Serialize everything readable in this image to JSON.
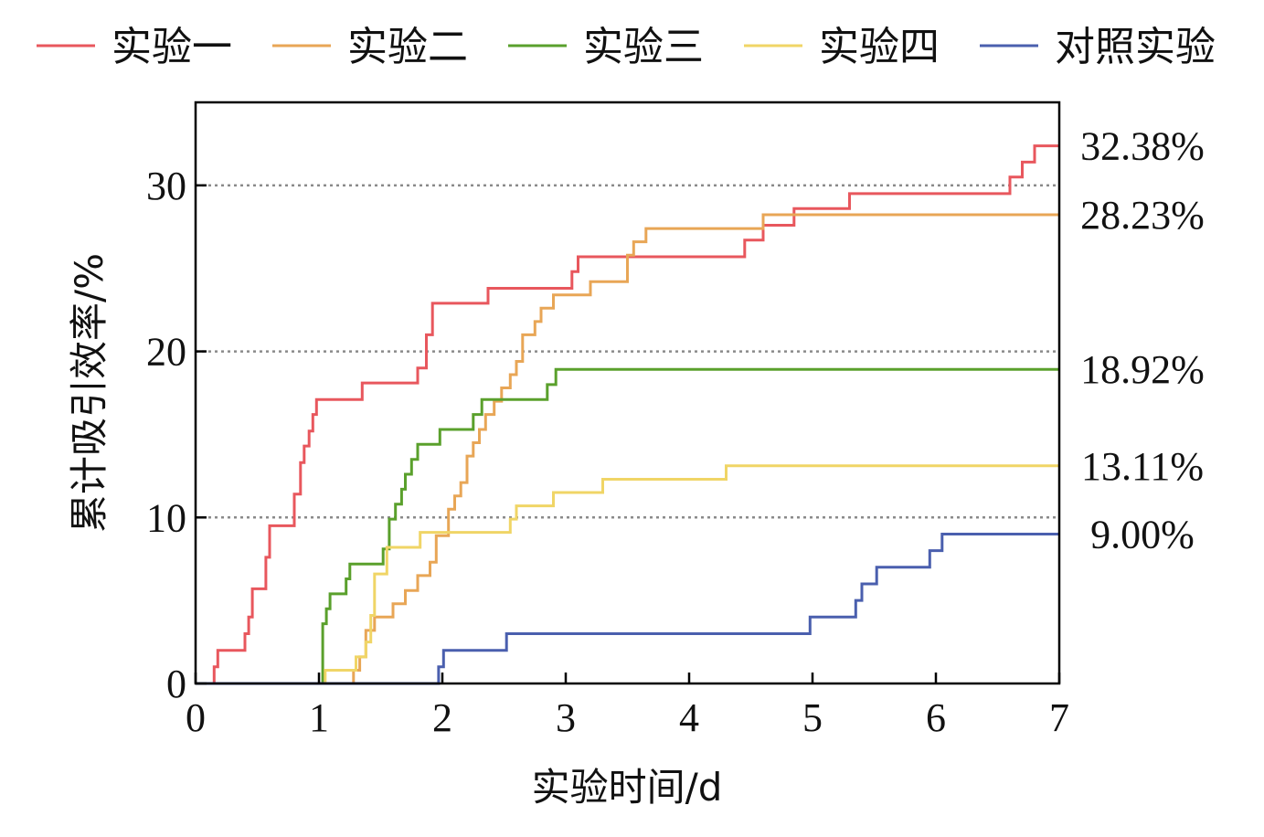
{
  "chart_data": {
    "type": "line",
    "title": "",
    "xlabel": "实验时间/d",
    "ylabel": "累计吸引效率/%",
    "xlim": [
      0,
      7
    ],
    "ylim": [
      0,
      35
    ],
    "xticks": [
      0,
      1,
      2,
      3,
      4,
      5,
      6,
      7
    ],
    "yticks": [
      0,
      10,
      20,
      30
    ],
    "grid_y": [
      10,
      20,
      30
    ],
    "legend_position": "top",
    "series": [
      {
        "name": "实验一",
        "color": "#e8575d",
        "final_label": "32.38%",
        "points": [
          [
            0,
            0
          ],
          [
            0.15,
            0
          ],
          [
            0.15,
            1
          ],
          [
            0.18,
            1
          ],
          [
            0.18,
            2
          ],
          [
            0.4,
            2
          ],
          [
            0.4,
            3
          ],
          [
            0.43,
            3
          ],
          [
            0.43,
            4
          ],
          [
            0.46,
            4
          ],
          [
            0.46,
            5.7
          ],
          [
            0.57,
            5.7
          ],
          [
            0.57,
            7.6
          ],
          [
            0.6,
            7.6
          ],
          [
            0.6,
            9.5
          ],
          [
            0.8,
            9.5
          ],
          [
            0.8,
            11.4
          ],
          [
            0.85,
            11.4
          ],
          [
            0.85,
            13.3
          ],
          [
            0.88,
            13.3
          ],
          [
            0.88,
            14.3
          ],
          [
            0.92,
            14.3
          ],
          [
            0.92,
            15.2
          ],
          [
            0.95,
            15.2
          ],
          [
            0.95,
            16.2
          ],
          [
            0.98,
            16.2
          ],
          [
            0.98,
            17.1
          ],
          [
            1.35,
            17.1
          ],
          [
            1.35,
            18.1
          ],
          [
            1.8,
            18.1
          ],
          [
            1.8,
            19
          ],
          [
            1.87,
            19
          ],
          [
            1.87,
            21
          ],
          [
            1.92,
            21
          ],
          [
            1.92,
            22.9
          ],
          [
            2.37,
            22.9
          ],
          [
            2.37,
            23.8
          ],
          [
            3.05,
            23.8
          ],
          [
            3.05,
            24.8
          ],
          [
            3.1,
            24.8
          ],
          [
            3.1,
            25.7
          ],
          [
            4.45,
            25.7
          ],
          [
            4.45,
            26.7
          ],
          [
            4.6,
            26.7
          ],
          [
            4.6,
            27.6
          ],
          [
            4.85,
            27.6
          ],
          [
            4.85,
            28.6
          ],
          [
            5.3,
            28.6
          ],
          [
            5.3,
            29.5
          ],
          [
            6.6,
            29.5
          ],
          [
            6.6,
            30.5
          ],
          [
            6.7,
            30.5
          ],
          [
            6.7,
            31.4
          ],
          [
            6.8,
            31.4
          ],
          [
            6.8,
            32.38
          ],
          [
            7,
            32.38
          ]
        ]
      },
      {
        "name": "实验二",
        "color": "#e8a656",
        "final_label": "28.23%",
        "points": [
          [
            0,
            0
          ],
          [
            1.28,
            0
          ],
          [
            1.28,
            0.8
          ],
          [
            1.33,
            0.8
          ],
          [
            1.33,
            1.6
          ],
          [
            1.38,
            1.6
          ],
          [
            1.38,
            3.2
          ],
          [
            1.45,
            3.2
          ],
          [
            1.45,
            4
          ],
          [
            1.6,
            4
          ],
          [
            1.6,
            4.8
          ],
          [
            1.7,
            4.8
          ],
          [
            1.7,
            5.6
          ],
          [
            1.8,
            5.6
          ],
          [
            1.8,
            6.5
          ],
          [
            1.9,
            6.5
          ],
          [
            1.9,
            7.3
          ],
          [
            1.95,
            7.3
          ],
          [
            1.95,
            8.9
          ],
          [
            2.05,
            8.9
          ],
          [
            2.05,
            10.5
          ],
          [
            2.1,
            10.5
          ],
          [
            2.1,
            11.3
          ],
          [
            2.15,
            11.3
          ],
          [
            2.15,
            12.1
          ],
          [
            2.2,
            12.1
          ],
          [
            2.2,
            13.7
          ],
          [
            2.25,
            13.7
          ],
          [
            2.25,
            14.5
          ],
          [
            2.3,
            14.5
          ],
          [
            2.3,
            15.3
          ],
          [
            2.35,
            15.3
          ],
          [
            2.35,
            16.2
          ],
          [
            2.42,
            16.2
          ],
          [
            2.42,
            17
          ],
          [
            2.48,
            17
          ],
          [
            2.48,
            17.8
          ],
          [
            2.55,
            17.8
          ],
          [
            2.55,
            18.6
          ],
          [
            2.6,
            18.6
          ],
          [
            2.6,
            19.4
          ],
          [
            2.65,
            19.4
          ],
          [
            2.65,
            21
          ],
          [
            2.75,
            21
          ],
          [
            2.75,
            21.8
          ],
          [
            2.8,
            21.8
          ],
          [
            2.8,
            22.6
          ],
          [
            2.9,
            22.6
          ],
          [
            2.9,
            23.4
          ],
          [
            3.2,
            23.4
          ],
          [
            3.2,
            24.2
          ],
          [
            3.5,
            24.2
          ],
          [
            3.5,
            25.8
          ],
          [
            3.55,
            25.8
          ],
          [
            3.55,
            26.6
          ],
          [
            3.65,
            26.6
          ],
          [
            3.65,
            27.4
          ],
          [
            4.6,
            27.4
          ],
          [
            4.6,
            28.23
          ],
          [
            7,
            28.23
          ]
        ]
      },
      {
        "name": "实验三",
        "color": "#5aa02c",
        "final_label": "18.92%",
        "points": [
          [
            0,
            0
          ],
          [
            1.03,
            0
          ],
          [
            1.03,
            3.6
          ],
          [
            1.06,
            3.6
          ],
          [
            1.06,
            4.5
          ],
          [
            1.09,
            4.5
          ],
          [
            1.09,
            5.4
          ],
          [
            1.22,
            5.4
          ],
          [
            1.22,
            6.3
          ],
          [
            1.25,
            6.3
          ],
          [
            1.25,
            7.2
          ],
          [
            1.52,
            7.2
          ],
          [
            1.52,
            8.1
          ],
          [
            1.57,
            8.1
          ],
          [
            1.57,
            9.9
          ],
          [
            1.62,
            9.9
          ],
          [
            1.62,
            10.8
          ],
          [
            1.67,
            10.8
          ],
          [
            1.67,
            11.7
          ],
          [
            1.7,
            11.7
          ],
          [
            1.7,
            12.6
          ],
          [
            1.75,
            12.6
          ],
          [
            1.75,
            13.5
          ],
          [
            1.8,
            13.5
          ],
          [
            1.8,
            14.4
          ],
          [
            1.98,
            14.4
          ],
          [
            1.98,
            15.3
          ],
          [
            2.25,
            15.3
          ],
          [
            2.25,
            16.2
          ],
          [
            2.32,
            16.2
          ],
          [
            2.32,
            17.1
          ],
          [
            2.85,
            17.1
          ],
          [
            2.85,
            18
          ],
          [
            2.92,
            18
          ],
          [
            2.92,
            18.92
          ],
          [
            7,
            18.92
          ]
        ]
      },
      {
        "name": "实验四",
        "color": "#f0d566",
        "final_label": "13.11%",
        "points": [
          [
            0,
            0
          ],
          [
            1.05,
            0
          ],
          [
            1.05,
            0.8
          ],
          [
            1.3,
            0.8
          ],
          [
            1.3,
            1.6
          ],
          [
            1.38,
            1.6
          ],
          [
            1.38,
            2.5
          ],
          [
            1.42,
            2.5
          ],
          [
            1.42,
            4.1
          ],
          [
            1.45,
            4.1
          ],
          [
            1.45,
            6.6
          ],
          [
            1.55,
            6.6
          ],
          [
            1.55,
            8.2
          ],
          [
            1.82,
            8.2
          ],
          [
            1.82,
            9.1
          ],
          [
            2.55,
            9.1
          ],
          [
            2.55,
            9.9
          ],
          [
            2.6,
            9.9
          ],
          [
            2.6,
            10.7
          ],
          [
            2.9,
            10.7
          ],
          [
            2.9,
            11.5
          ],
          [
            3.3,
            11.5
          ],
          [
            3.3,
            12.3
          ],
          [
            4.3,
            12.3
          ],
          [
            4.3,
            13.11
          ],
          [
            7,
            13.11
          ]
        ]
      },
      {
        "name": "对照实验",
        "color": "#4a5fae",
        "final_label": "9.00%",
        "points": [
          [
            0,
            0
          ],
          [
            1.97,
            0
          ],
          [
            1.97,
            1
          ],
          [
            2.01,
            1
          ],
          [
            2.01,
            2
          ],
          [
            2.52,
            2
          ],
          [
            2.52,
            3
          ],
          [
            4.98,
            3
          ],
          [
            4.98,
            4
          ],
          [
            5.35,
            4
          ],
          [
            5.35,
            5
          ],
          [
            5.4,
            5
          ],
          [
            5.4,
            6
          ],
          [
            5.52,
            6
          ],
          [
            5.52,
            7
          ],
          [
            5.95,
            7
          ],
          [
            5.95,
            8
          ],
          [
            6.05,
            8
          ],
          [
            6.05,
            9
          ],
          [
            7,
            9
          ]
        ]
      }
    ]
  }
}
